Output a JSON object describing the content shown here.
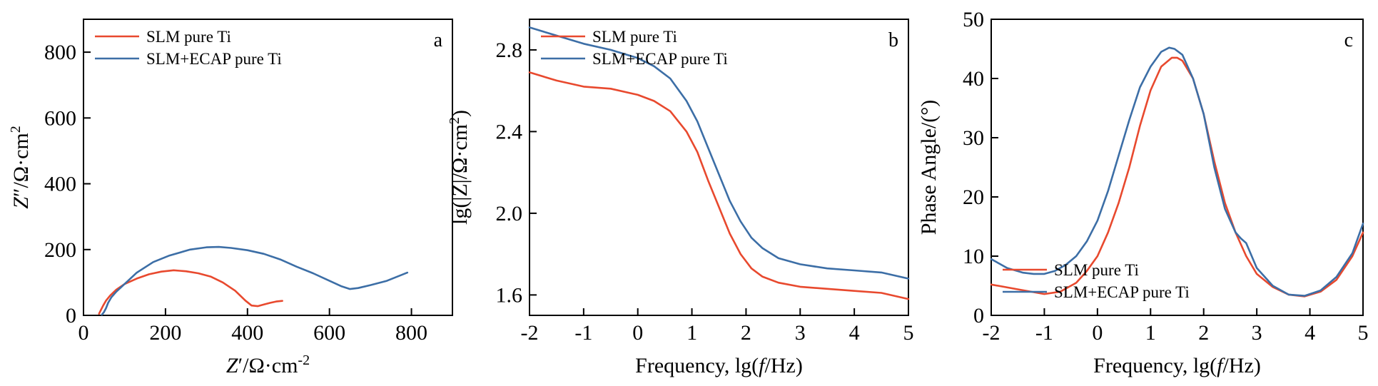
{
  "colors": {
    "red": "#e8492e",
    "blue": "#3c6ea6"
  },
  "chart_data": [
    {
      "type": "line",
      "panel_label": "a",
      "xlabel": {
        "parts": [
          [
            "Z",
            "i"
          ],
          [
            "′/Ω·cm",
            ""
          ],
          [
            "-2",
            "sup"
          ]
        ]
      },
      "ylabel": {
        "parts": [
          [
            "Z",
            "i"
          ],
          [
            "″/Ω·cm",
            ""
          ],
          [
            "2",
            "sup"
          ]
        ]
      },
      "xlim": [
        0,
        900
      ],
      "ylim": [
        0,
        900
      ],
      "xticks": [
        0,
        200,
        400,
        600,
        800
      ],
      "yticks": [
        0,
        200,
        400,
        600,
        800
      ],
      "legend_position": "top-left",
      "series": [
        {
          "name": "SLM pure Ti",
          "color": "#e8492e",
          "x": [
            38,
            42,
            48,
            55,
            65,
            80,
            100,
            130,
            160,
            190,
            220,
            250,
            280,
            310,
            340,
            370,
            395,
            410,
            425,
            440,
            455,
            470,
            485
          ],
          "y": [
            5,
            15,
            30,
            45,
            60,
            78,
            95,
            112,
            125,
            133,
            137,
            134,
            128,
            118,
            100,
            75,
            45,
            30,
            28,
            33,
            38,
            42,
            44
          ]
        },
        {
          "name": "SLM+ECAP pure Ti",
          "color": "#3c6ea6",
          "x": [
            45,
            50,
            55,
            60,
            68,
            80,
            100,
            130,
            170,
            210,
            260,
            300,
            330,
            360,
            400,
            440,
            480,
            520,
            560,
            600,
            630,
            650,
            670,
            700,
            740,
            790
          ],
          "y": [
            2,
            10,
            22,
            38,
            55,
            72,
            95,
            130,
            162,
            182,
            200,
            207,
            208,
            205,
            198,
            187,
            170,
            148,
            128,
            105,
            88,
            80,
            83,
            92,
            105,
            130
          ]
        }
      ]
    },
    {
      "type": "line",
      "panel_label": "b",
      "xlabel": {
        "parts": [
          [
            "Frequency, lg(",
            ""
          ],
          [
            "f",
            "i"
          ],
          [
            "/Hz)",
            ""
          ]
        ]
      },
      "ylabel": {
        "parts": [
          [
            "lg(|Z|/Ω·cm",
            ""
          ],
          [
            "2",
            "sup"
          ],
          [
            ")",
            ""
          ]
        ]
      },
      "xlim": [
        -2,
        5
      ],
      "ylim": [
        1.5,
        2.95
      ],
      "xticks": [
        -2,
        -1,
        0,
        1,
        2,
        3,
        4,
        5
      ],
      "yticks": [
        1.6,
        2.0,
        2.4,
        2.8
      ],
      "tick_decimals": {
        "y": 1
      },
      "legend_position": "top-left",
      "series": [
        {
          "name": "SLM pure Ti",
          "color": "#e8492e",
          "x": [
            -2,
            -1.5,
            -1,
            -0.5,
            0,
            0.3,
            0.6,
            0.9,
            1.1,
            1.3,
            1.5,
            1.7,
            1.9,
            2.1,
            2.3,
            2.6,
            3,
            3.5,
            4,
            4.5,
            5
          ],
          "y": [
            2.69,
            2.65,
            2.62,
            2.61,
            2.58,
            2.55,
            2.5,
            2.4,
            2.3,
            2.16,
            2.03,
            1.9,
            1.8,
            1.73,
            1.69,
            1.66,
            1.64,
            1.63,
            1.62,
            1.61,
            1.58
          ]
        },
        {
          "name": "SLM+ECAP pure Ti",
          "color": "#3c6ea6",
          "x": [
            -2,
            -1.5,
            -1,
            -0.5,
            0,
            0.3,
            0.6,
            0.9,
            1.1,
            1.3,
            1.5,
            1.7,
            1.9,
            2.1,
            2.3,
            2.6,
            3,
            3.5,
            4,
            4.5,
            5
          ],
          "y": [
            2.91,
            2.87,
            2.83,
            2.8,
            2.76,
            2.72,
            2.66,
            2.55,
            2.45,
            2.32,
            2.19,
            2.06,
            1.96,
            1.88,
            1.83,
            1.78,
            1.75,
            1.73,
            1.72,
            1.71,
            1.68
          ]
        }
      ]
    },
    {
      "type": "line",
      "panel_label": "c",
      "xlabel": {
        "parts": [
          [
            "Frequency, lg(",
            ""
          ],
          [
            "f",
            "i"
          ],
          [
            "/Hz)",
            ""
          ]
        ]
      },
      "ylabel": {
        "parts": [
          [
            "Phase Angle/(°)",
            ""
          ]
        ]
      },
      "xlim": [
        -2,
        5
      ],
      "ylim": [
        0,
        50
      ],
      "xticks": [
        -2,
        -1,
        0,
        1,
        2,
        3,
        4,
        5
      ],
      "yticks": [
        0,
        10,
        20,
        30,
        40,
        50
      ],
      "legend_position": "bottom-left",
      "series": [
        {
          "name": "SLM pure Ti",
          "color": "#e8492e",
          "x": [
            -2,
            -1.5,
            -1,
            -0.7,
            -0.4,
            -0.2,
            0,
            0.2,
            0.4,
            0.6,
            0.8,
            1,
            1.2,
            1.4,
            1.5,
            1.6,
            1.8,
            2,
            2.2,
            2.4,
            2.6,
            2.8,
            3,
            3.3,
            3.6,
            3.9,
            4.2,
            4.5,
            4.8,
            5
          ],
          "y": [
            5.2,
            4.4,
            3.6,
            4,
            5.5,
            7.5,
            10,
            14,
            19,
            25,
            32,
            38,
            42,
            43.5,
            43.5,
            43,
            40,
            34,
            26,
            19,
            14,
            10,
            7,
            4.8,
            3.5,
            3.2,
            4,
            6,
            10,
            14
          ]
        },
        {
          "name": "SLM+ECAP pure Ti",
          "color": "#3c6ea6",
          "x": [
            -2,
            -1.7,
            -1.4,
            -1.2,
            -1,
            -0.8,
            -0.6,
            -0.4,
            -0.2,
            0,
            0.2,
            0.4,
            0.6,
            0.8,
            1,
            1.2,
            1.35,
            1.45,
            1.6,
            1.8,
            2,
            2.2,
            2.4,
            2.6,
            2.7,
            2.8,
            3,
            3.3,
            3.6,
            3.9,
            4.2,
            4.5,
            4.8,
            5
          ],
          "y": [
            9.5,
            8,
            7.2,
            7,
            7,
            7.5,
            8.5,
            10,
            12.5,
            16,
            21,
            27,
            33,
            38.5,
            42,
            44.5,
            45.2,
            45,
            44,
            40,
            34,
            25,
            18,
            14,
            13,
            12.2,
            8,
            5,
            3.5,
            3.3,
            4.2,
            6.5,
            10.5,
            15.5
          ]
        }
      ]
    }
  ]
}
